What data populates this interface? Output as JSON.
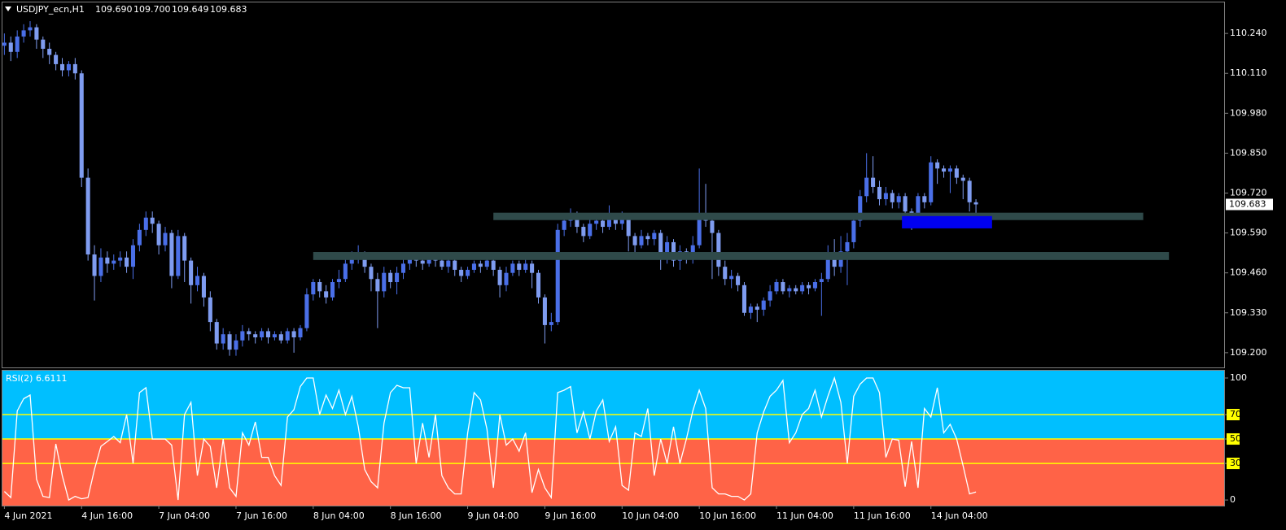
{
  "chart_data": [
    {
      "type": "candlestick",
      "title": "USDJPY_ecn,H1",
      "header_values": [
        "109.690",
        "109.700",
        "109.649",
        "109.683"
      ],
      "up_color": "#4a6fe8",
      "down_color": "#7f9cf0",
      "xlim": [
        -0.3,
        189.7
      ],
      "ylim": [
        109.152,
        110.341
      ],
      "yticks": [
        {
          "value": 110.24,
          "label": "110.240"
        },
        {
          "value": 110.11,
          "label": "110.110"
        },
        {
          "value": 109.98,
          "label": "109.980"
        },
        {
          "value": 109.85,
          "label": "109.850"
        },
        {
          "value": 109.72,
          "label": "109.720"
        },
        {
          "value": 109.59,
          "label": "109.590"
        },
        {
          "value": 109.46,
          "label": "109.460"
        },
        {
          "value": 109.33,
          "label": "109.330"
        },
        {
          "value": 109.2,
          "label": "109.200"
        }
      ],
      "last_price": {
        "value": 109.683,
        "label": "109.683"
      },
      "zones": [
        {
          "from": 76,
          "to": 177,
          "top": 109.656,
          "bottom": 109.632,
          "color": "#2f4a4a"
        },
        {
          "from": 48,
          "to": 181,
          "top": 109.528,
          "bottom": 109.502,
          "color": "#2f4a4a"
        },
        {
          "from": 139.5,
          "to": 153.5,
          "top": 109.645,
          "bottom": 109.605,
          "color": "#0000f0"
        }
      ],
      "open": [
        110.2,
        110.21,
        110.18,
        110.23,
        110.25,
        110.26,
        110.22,
        110.19,
        110.17,
        110.14,
        110.12,
        110.14,
        110.11,
        109.77,
        109.52,
        109.45,
        109.51,
        109.49,
        109.5,
        109.51,
        109.48,
        109.55,
        109.6,
        109.64,
        109.62,
        109.55,
        109.59,
        109.45,
        109.58,
        109.5,
        109.42,
        109.45,
        109.38,
        109.3,
        109.23,
        109.26,
        109.21,
        109.24,
        109.27,
        109.26,
        109.25,
        109.27,
        109.25,
        109.26,
        109.24,
        109.27,
        109.25,
        109.28,
        109.39,
        109.43,
        109.4,
        109.38,
        109.43,
        109.44,
        109.49,
        109.51,
        109.52,
        109.48,
        109.44,
        109.4,
        109.46,
        109.43,
        109.46,
        109.49,
        109.51,
        109.5,
        109.49,
        109.51,
        109.5,
        109.48,
        109.5,
        109.47,
        109.45,
        109.47,
        109.49,
        109.48,
        109.5,
        109.47,
        109.42,
        109.46,
        109.49,
        109.47,
        109.49,
        109.46,
        109.38,
        109.29,
        109.3,
        109.6,
        109.63,
        109.65,
        109.61,
        109.58,
        109.62,
        109.63,
        109.61,
        109.64,
        109.62,
        109.64,
        109.58,
        109.55,
        109.58,
        109.57,
        109.59,
        109.52,
        109.56,
        109.5,
        109.53,
        109.51,
        109.55,
        109.64,
        109.63,
        109.59,
        109.48,
        109.44,
        109.45,
        109.42,
        109.33,
        109.35,
        109.34,
        109.37,
        109.4,
        109.43,
        109.4,
        109.41,
        109.4,
        109.42,
        109.41,
        109.43,
        109.44,
        109.52,
        109.48,
        109.53,
        109.56,
        109.63,
        109.71,
        109.77,
        109.74,
        109.7,
        109.72,
        109.69,
        109.71,
        109.66,
        109.62,
        109.71,
        109.69,
        109.82,
        109.8,
        109.79,
        109.8,
        109.77,
        109.76,
        109.69
      ],
      "high": [
        110.24,
        110.23,
        110.25,
        110.27,
        110.28,
        110.27,
        110.23,
        110.21,
        110.18,
        110.16,
        110.15,
        110.16,
        110.12,
        109.8,
        109.55,
        109.54,
        109.53,
        109.52,
        109.53,
        109.53,
        109.57,
        109.62,
        109.66,
        109.66,
        109.63,
        109.61,
        109.6,
        109.6,
        109.59,
        109.51,
        109.48,
        109.46,
        109.4,
        109.31,
        109.28,
        109.27,
        109.26,
        109.29,
        109.28,
        109.27,
        109.28,
        109.28,
        109.27,
        109.27,
        109.28,
        109.28,
        109.29,
        109.41,
        109.44,
        109.44,
        109.42,
        109.44,
        109.47,
        109.51,
        109.53,
        109.55,
        109.53,
        109.49,
        109.46,
        109.48,
        109.47,
        109.48,
        109.51,
        109.52,
        109.52,
        109.51,
        109.52,
        109.52,
        109.51,
        109.51,
        109.51,
        109.48,
        109.48,
        109.5,
        109.5,
        109.51,
        109.51,
        109.48,
        109.48,
        109.5,
        109.5,
        109.51,
        109.5,
        109.47,
        109.39,
        109.33,
        109.62,
        109.65,
        109.67,
        109.66,
        109.62,
        109.64,
        109.65,
        109.64,
        109.68,
        109.65,
        109.66,
        109.65,
        109.59,
        109.6,
        109.59,
        109.6,
        109.6,
        109.58,
        109.57,
        109.55,
        109.54,
        109.58,
        109.8,
        109.75,
        109.65,
        109.6,
        109.5,
        109.47,
        109.46,
        109.43,
        109.36,
        109.36,
        109.38,
        109.42,
        109.44,
        109.44,
        109.42,
        109.42,
        109.43,
        109.43,
        109.44,
        109.46,
        109.55,
        109.57,
        109.58,
        109.59,
        109.65,
        109.73,
        109.85,
        109.84,
        109.76,
        109.74,
        109.73,
        109.72,
        109.72,
        109.67,
        109.72,
        109.72,
        109.84,
        109.83,
        109.81,
        109.81,
        109.81,
        109.78,
        109.77,
        109.7
      ],
      "low": [
        110.17,
        110.15,
        110.16,
        110.21,
        110.23,
        110.19,
        110.16,
        110.14,
        110.12,
        110.1,
        110.1,
        110.09,
        109.74,
        109.5,
        109.37,
        109.43,
        109.46,
        109.47,
        109.48,
        109.46,
        109.44,
        109.53,
        109.58,
        109.59,
        109.52,
        109.53,
        109.41,
        109.44,
        109.43,
        109.36,
        109.4,
        109.35,
        109.27,
        109.21,
        109.21,
        109.19,
        109.19,
        109.22,
        109.24,
        109.23,
        109.24,
        109.23,
        109.24,
        109.23,
        109.23,
        109.2,
        109.24,
        109.27,
        109.37,
        109.38,
        109.36,
        109.37,
        109.41,
        109.43,
        109.47,
        109.49,
        109.46,
        109.4,
        109.28,
        109.38,
        109.41,
        109.39,
        109.44,
        109.47,
        109.48,
        109.47,
        109.48,
        109.48,
        109.47,
        109.46,
        109.45,
        109.43,
        109.44,
        109.46,
        109.46,
        109.47,
        109.45,
        109.38,
        109.4,
        109.45,
        109.45,
        109.46,
        109.41,
        109.36,
        109.23,
        109.27,
        109.29,
        109.58,
        109.61,
        109.59,
        109.56,
        109.57,
        109.6,
        109.59,
        109.6,
        109.6,
        109.6,
        109.53,
        109.52,
        109.54,
        109.55,
        109.55,
        109.47,
        109.49,
        109.48,
        109.47,
        109.49,
        109.49,
        109.54,
        109.61,
        109.44,
        109.45,
        109.42,
        109.41,
        109.4,
        109.32,
        109.31,
        109.3,
        109.32,
        109.35,
        109.39,
        109.39,
        109.38,
        109.39,
        109.39,
        109.39,
        109.4,
        109.32,
        109.43,
        109.45,
        109.46,
        109.42,
        109.54,
        109.61,
        109.69,
        109.72,
        109.68,
        109.68,
        109.67,
        109.67,
        109.64,
        109.6,
        109.61,
        109.67,
        109.68,
        109.75,
        109.77,
        109.72,
        109.75,
        109.7,
        109.66,
        109.649
      ],
      "close": [
        110.21,
        110.18,
        110.23,
        110.25,
        110.26,
        110.22,
        110.19,
        110.17,
        110.14,
        110.12,
        110.14,
        110.11,
        109.77,
        109.52,
        109.45,
        109.51,
        109.49,
        109.5,
        109.51,
        109.48,
        109.55,
        109.6,
        109.64,
        109.62,
        109.55,
        109.59,
        109.45,
        109.58,
        109.5,
        109.42,
        109.45,
        109.38,
        109.3,
        109.23,
        109.26,
        109.21,
        109.24,
        109.27,
        109.26,
        109.25,
        109.27,
        109.25,
        109.26,
        109.24,
        109.27,
        109.25,
        109.28,
        109.39,
        109.43,
        109.4,
        109.38,
        109.43,
        109.44,
        109.49,
        109.51,
        109.52,
        109.48,
        109.44,
        109.4,
        109.46,
        109.43,
        109.46,
        109.49,
        109.51,
        109.5,
        109.49,
        109.51,
        109.5,
        109.48,
        109.5,
        109.47,
        109.45,
        109.47,
        109.49,
        109.48,
        109.5,
        109.47,
        109.42,
        109.46,
        109.49,
        109.47,
        109.49,
        109.46,
        109.38,
        109.29,
        109.3,
        109.6,
        109.63,
        109.65,
        109.61,
        109.58,
        109.62,
        109.63,
        109.61,
        109.64,
        109.62,
        109.64,
        109.58,
        109.55,
        109.58,
        109.57,
        109.59,
        109.52,
        109.56,
        109.5,
        109.53,
        109.51,
        109.55,
        109.64,
        109.63,
        109.59,
        109.48,
        109.44,
        109.45,
        109.42,
        109.33,
        109.35,
        109.34,
        109.37,
        109.4,
        109.43,
        109.4,
        109.41,
        109.4,
        109.42,
        109.41,
        109.43,
        109.44,
        109.52,
        109.48,
        109.53,
        109.56,
        109.63,
        109.71,
        109.77,
        109.74,
        109.7,
        109.72,
        109.69,
        109.71,
        109.66,
        109.62,
        109.71,
        109.69,
        109.82,
        109.8,
        109.79,
        109.8,
        109.77,
        109.76,
        109.69,
        109.683
      ]
    },
    {
      "type": "line",
      "title": "RSI(2) 6.6111",
      "color": "#ffffff",
      "xlim": [
        -0.3,
        189.7
      ],
      "xticks": [
        {
          "value": 0,
          "label": "4 Jun 2021"
        },
        {
          "value": 12,
          "label": "4 Jun 16:00"
        },
        {
          "value": 24,
          "label": "7 Jun 04:00"
        },
        {
          "value": 36,
          "label": "7 Jun 16:00"
        },
        {
          "value": 48,
          "label": "8 Jun 04:00"
        },
        {
          "value": 60,
          "label": "8 Jun 16:00"
        },
        {
          "value": 72,
          "label": "9 Jun 04:00"
        },
        {
          "value": 84,
          "label": "9 Jun 16:00"
        },
        {
          "value": 96,
          "label": "10 Jun 04:00"
        },
        {
          "value": 108,
          "label": "10 Jun 16:00"
        },
        {
          "value": 120,
          "label": "11 Jun 04:00"
        },
        {
          "value": 132,
          "label": "11 Jun 16:00"
        },
        {
          "value": 144,
          "label": "14 Jun 04:00"
        }
      ],
      "ylim": [
        -4.6,
        106
      ],
      "yticks": [
        0,
        30,
        50,
        70,
        100
      ],
      "levels": [
        30,
        50,
        70
      ],
      "level_color": "#ffff00",
      "fill_above": "#00bfff",
      "fill_below": "#ff6347",
      "values": [
        7,
        2,
        73,
        83,
        86,
        17,
        3,
        2,
        46,
        20,
        0,
        3,
        1,
        2,
        25,
        44,
        48,
        52,
        47,
        70,
        30,
        88,
        92,
        50,
        50,
        50,
        45,
        0,
        70,
        80,
        20,
        50,
        44,
        10,
        50,
        10,
        3,
        55,
        45,
        64,
        35,
        35,
        20,
        12,
        68,
        74,
        93,
        100,
        100,
        70,
        86,
        75,
        90,
        70,
        85,
        60,
        25,
        15,
        10,
        63,
        88,
        94,
        92,
        92,
        30,
        63,
        35,
        70,
        20,
        10,
        5,
        5,
        55,
        88,
        82,
        58,
        10,
        70,
        45,
        50,
        40,
        55,
        6,
        25,
        10,
        2,
        88,
        90,
        93,
        55,
        72,
        50,
        73,
        82,
        48,
        60,
        12,
        8,
        55,
        52,
        75,
        20,
        50,
        30,
        60,
        30,
        50,
        73,
        90,
        75,
        10,
        5,
        5,
        3,
        3,
        0,
        5,
        55,
        72,
        85,
        90,
        98,
        47,
        55,
        70,
        75,
        90,
        68,
        85,
        100,
        80,
        30,
        85,
        95,
        100,
        100,
        88,
        35,
        50,
        49,
        11,
        48,
        10,
        75,
        68,
        92,
        55,
        62,
        50,
        28,
        5,
        6.6111
      ]
    }
  ]
}
